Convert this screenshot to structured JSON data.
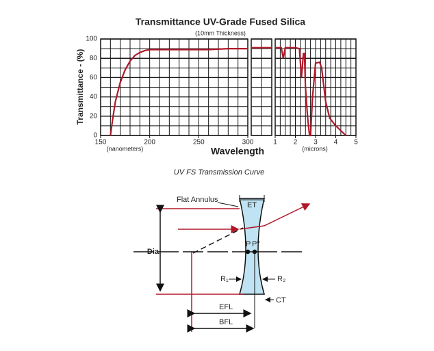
{
  "chart_data": {
    "type": "line",
    "title": "Transmittance UV-Grade Fused Silica",
    "subtitle": "(10mm Thickness)",
    "y_label": "Transmittance - (%)",
    "x_label": "Wavelength",
    "ylim": [
      0,
      100
    ],
    "yticks": [
      0,
      20,
      40,
      60,
      80,
      100
    ],
    "grid": true,
    "color": "#b0182a",
    "panels": [
      {
        "xlim": [
          150,
          300
        ],
        "xticks": [
          150,
          200,
          250,
          300
        ],
        "x_unit_label": "(nanometers)",
        "x": [
          160,
          162,
          165,
          170,
          175,
          180,
          185,
          190,
          195,
          200,
          210,
          220,
          240,
          260,
          280,
          300
        ],
        "values": [
          0,
          15,
          35,
          55,
          68,
          77,
          83,
          86,
          88,
          89,
          89,
          89,
          89,
          89,
          90,
          90
        ]
      },
      {
        "xlim": [
          300,
          1000
        ],
        "xticks": [],
        "x": [
          300,
          1000
        ],
        "values": [
          91,
          91
        ]
      },
      {
        "xlim": [
          1,
          5
        ],
        "xticks": [
          1,
          2,
          3,
          4,
          5
        ],
        "x_unit_label": "(microns)",
        "x": [
          1.0,
          1.3,
          1.4,
          1.5,
          2.0,
          2.2,
          2.3,
          2.4,
          2.45,
          2.5,
          2.6,
          2.7,
          2.75,
          2.85,
          3.0,
          3.2,
          3.3,
          3.5,
          3.7,
          4.0,
          4.5
        ],
        "values": [
          91,
          91,
          80,
          91,
          91,
          90,
          60,
          85,
          85,
          50,
          20,
          0,
          0,
          40,
          75,
          76,
          70,
          35,
          18,
          10,
          0
        ]
      }
    ]
  },
  "caption": "UV FS Transmission Curve",
  "diagram": {
    "flat_annulus": "Flat Annulus",
    "et": "ET",
    "p": "P",
    "p2": "P''",
    "dia": "Dia.",
    "r1": "R₁",
    "r2": "R₂",
    "ct": "CT",
    "efl": "EFL",
    "bfl": "BFL"
  }
}
